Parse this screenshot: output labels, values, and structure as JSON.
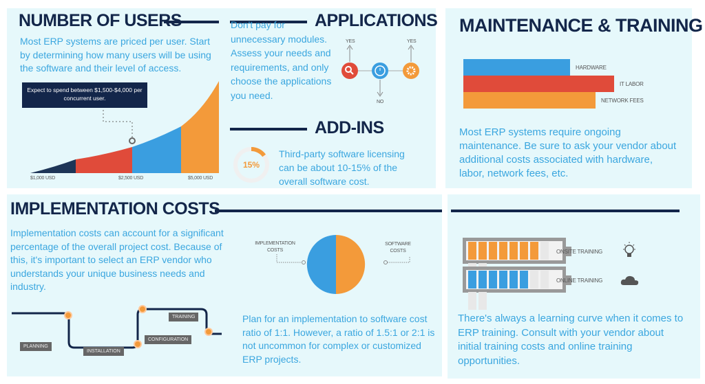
{
  "users": {
    "title": "NUMBER OF USERS",
    "text": "Most ERP systems are priced per user. Start by determining how many users will be using the software and their level of access.",
    "callout": "Expect to spend between $1,500-$4,000 per concurrent user.",
    "axis_labels": [
      "$1,000 USD",
      "$2,500 USD",
      "$5,000 USD"
    ],
    "colors": [
      "#1d3557",
      "#e04b3a",
      "#3a9ee0",
      "#f39a3a"
    ]
  },
  "applications": {
    "title": "APPLICATIONS",
    "text": "Don't pay for unnecessary modules. Assess your needs and requirements, and only choose the applications you need.",
    "yes_label_1": "YES",
    "yes_label_2": "YES",
    "no_label": "NO",
    "icons": [
      "search-icon",
      "clock-icon",
      "gear-icon"
    ]
  },
  "addins": {
    "title": "ADD-INS",
    "percent_label": "15%",
    "percent": 15,
    "text": "Third-party software licensing can be about 10-15% of the overall software cost."
  },
  "maintenance": {
    "title": "MAINTENANCE & TRAINING",
    "bars": [
      {
        "label": "HARDWARE",
        "value": 155,
        "color": "#3a9ee0"
      },
      {
        "label": "IT LABOR",
        "value": 219,
        "color": "#e04b3a"
      },
      {
        "label": "NETWORK FEES",
        "value": 192,
        "color": "#f39a3a"
      }
    ],
    "text": "Most ERP systems require ongoing maintenance. Be sure to ask your vendor about additional costs associated with hardware, labor, network fees, etc."
  },
  "implementation": {
    "title": "IMPLEMENTATION COSTS",
    "text": "Implementation costs can account for a significant percentage of the overall project cost. Because of this, it's important to select an ERP vendor who understands your unique business needs and industry.",
    "pie": [
      {
        "label": "IMPLEMENTATION COSTS",
        "value": 50,
        "color": "#3a9ee0"
      },
      {
        "label": "SOFTWARE COSTS",
        "value": 50,
        "color": "#f39a3a"
      }
    ],
    "steps": [
      "PLANNING",
      "INSTALLATION",
      "CONFIGURATION",
      "TRAINING"
    ],
    "ratio_text": "Plan for an implementation to software cost ratio of 1:1. However, a ratio of 1.5:1 or 2:1 is not uncommon for complex or customized ERP projects."
  },
  "training": {
    "items": [
      {
        "label": "ONSITE TRAINING",
        "filled": 7,
        "total": 10,
        "color": "#f39a3a",
        "icon": "lightbulb-icon"
      },
      {
        "label": "ONLINE TRAINING",
        "filled": 6,
        "total": 10,
        "color": "#3a9ee0",
        "icon": "cloud-icon"
      }
    ],
    "text": "There's always a learning curve when it comes to ERP training. Consult with your vendor about initial training costs and online training opportunities."
  }
}
